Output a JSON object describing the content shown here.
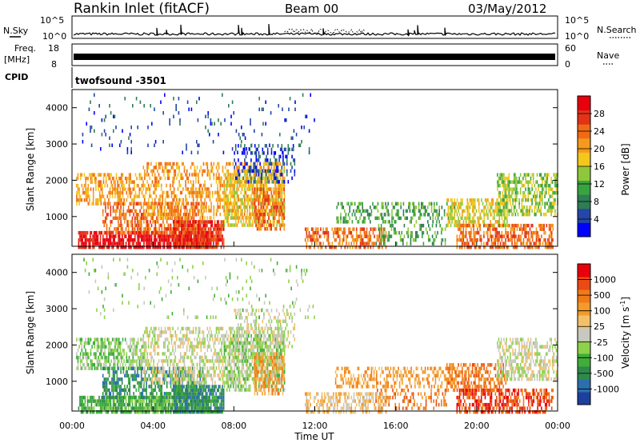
{
  "header": {
    "station": "Rankin Inlet (fitACF)",
    "beam": "Beam 00",
    "date": "03/May/2012"
  },
  "top_panels": {
    "nsky_label": "N.Sky",
    "nsky_ticks": [
      "10^5",
      "10^0"
    ],
    "nsearch_label": "N.Search",
    "nsearch_ticks": [
      "10^5",
      "10^0"
    ],
    "freq_label_1": "Freq.",
    "freq_label_2": "[MHz]",
    "freq_ticks": [
      "18",
      "8"
    ],
    "nave_label": "Nave",
    "nave_ticks": [
      "60",
      "0"
    ],
    "cpid_label": "CPID",
    "cpid_value": "twofsound -3501"
  },
  "chart_data": [
    {
      "type": "heatmap",
      "title": "",
      "ylabel": "Slant Range [km]",
      "xlabel": "",
      "ylim": [
        180,
        4500
      ],
      "yticks": [
        "1000",
        "2000",
        "3000",
        "4000"
      ],
      "colorbar": {
        "label": "Power [dB]",
        "ticks": [
          "28",
          "24",
          "20",
          "16",
          "12",
          "8",
          "4"
        ],
        "colors": [
          "#0000ff",
          "#2346a8",
          "#2f7d55",
          "#38a33f",
          "#8ec83a",
          "#f2c81c",
          "#f59a1c",
          "#f06a16",
          "#e23318",
          "#e8000d"
        ]
      }
    },
    {
      "type": "heatmap",
      "title": "",
      "ylabel": "Slant Range [km]",
      "xlabel": "Time UT",
      "ylim": [
        180,
        4500
      ],
      "xlim_hours": [
        0,
        24
      ],
      "yticks": [
        "1000",
        "2000",
        "3000",
        "4000"
      ],
      "xticks": [
        "00:00",
        "04:00",
        "08:00",
        "12:00",
        "16:00",
        "20:00",
        "00:00"
      ],
      "colorbar": {
        "label": "Velocity [m s",
        "label_sup": "-1",
        "label_end": "]",
        "ticks": [
          "1000",
          "500",
          "100",
          "25",
          "-25",
          "-100",
          "-500",
          "-1000"
        ],
        "colors": [
          "#1e3f9e",
          "#2c6fae",
          "#2f8a4a",
          "#3fae3a",
          "#8ed24a",
          "#c8c8c0",
          "#f3c06a",
          "#f39a28",
          "#f07a18",
          "#ea4a14",
          "#e8000d"
        ]
      }
    }
  ]
}
